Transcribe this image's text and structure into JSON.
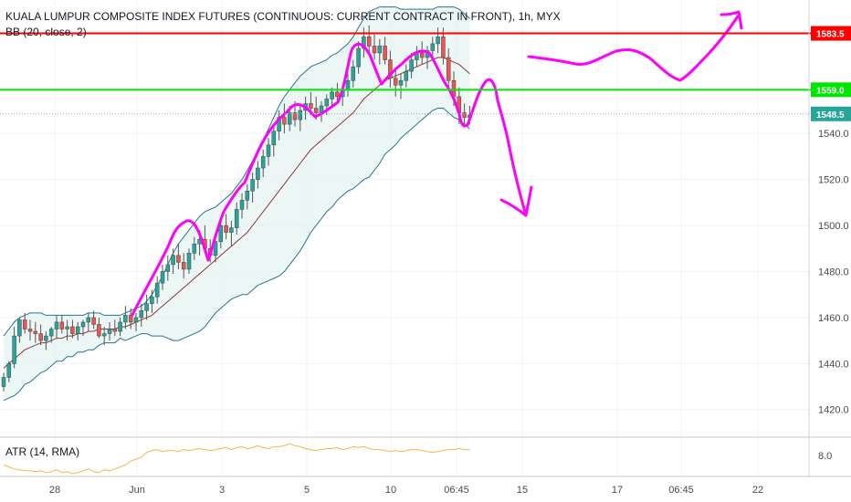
{
  "chart_data": {
    "type": "candlestick",
    "title": "KUALA LUMPUR COMPOSITE INDEX FUTURES (CONTINUOUS: CURRENT CONTRACT IN FRONT), 1h, MYX",
    "indicator_label": "BB (20, close, 2)",
    "lower_indicator_label": "ATR (14, RMA)",
    "ylim": [
      1408,
      1598
    ],
    "y_ticks": [
      1420.0,
      1440.0,
      1460.0,
      1480.0,
      1500.0,
      1520.0,
      1540.0
    ],
    "x_tick_labels": [
      "28",
      "Jun",
      "3",
      "5",
      "10",
      "06:45",
      "15",
      "17",
      "06:45",
      "22"
    ],
    "lower_y_tick": "8.0",
    "levels": [
      {
        "value": 1583.5,
        "label": "1583.5",
        "color": "#ff0000"
      },
      {
        "value": 1559.0,
        "label": "1559.0",
        "color": "#00e600"
      },
      {
        "value": 1548.5,
        "label": "1548.5",
        "color": "#26a69a"
      }
    ],
    "ohlc": [
      [
        1430,
        1436,
        1428,
        1434
      ],
      [
        1434,
        1441,
        1432,
        1440
      ],
      [
        1440,
        1456,
        1438,
        1452
      ],
      [
        1452,
        1460,
        1449,
        1459
      ],
      [
        1459,
        1462,
        1453,
        1455
      ],
      [
        1455,
        1459,
        1450,
        1454
      ],
      [
        1454,
        1458,
        1449,
        1453
      ],
      [
        1453,
        1457,
        1448,
        1450
      ],
      [
        1450,
        1454,
        1446,
        1452
      ],
      [
        1452,
        1456,
        1449,
        1455
      ],
      [
        1455,
        1461,
        1451,
        1458
      ],
      [
        1458,
        1461,
        1453,
        1455
      ],
      [
        1455,
        1459,
        1450,
        1456
      ],
      [
        1456,
        1459,
        1451,
        1453
      ],
      [
        1453,
        1458,
        1450,
        1456
      ],
      [
        1456,
        1459,
        1452,
        1458
      ],
      [
        1458,
        1462,
        1454,
        1460
      ],
      [
        1460,
        1463,
        1455,
        1457
      ],
      [
        1457,
        1460,
        1451,
        1452
      ],
      [
        1452,
        1456,
        1448,
        1453
      ],
      [
        1453,
        1458,
        1450,
        1455
      ],
      [
        1455,
        1459,
        1452,
        1454
      ],
      [
        1454,
        1460,
        1452,
        1458
      ],
      [
        1458,
        1465,
        1455,
        1461
      ],
      [
        1461,
        1464,
        1455,
        1458
      ],
      [
        1458,
        1462,
        1454,
        1460
      ],
      [
        1460,
        1466,
        1456,
        1463
      ],
      [
        1463,
        1470,
        1459,
        1466
      ],
      [
        1466,
        1472,
        1462,
        1469
      ],
      [
        1469,
        1478,
        1466,
        1475
      ],
      [
        1475,
        1483,
        1472,
        1480
      ],
      [
        1480,
        1487,
        1476,
        1483
      ],
      [
        1483,
        1490,
        1479,
        1487
      ],
      [
        1487,
        1492,
        1481,
        1484
      ],
      [
        1484,
        1488,
        1477,
        1481
      ],
      [
        1481,
        1490,
        1479,
        1488
      ],
      [
        1488,
        1495,
        1485,
        1492
      ],
      [
        1492,
        1498,
        1487,
        1494
      ],
      [
        1494,
        1500,
        1488,
        1490
      ],
      [
        1490,
        1494,
        1484,
        1487
      ],
      [
        1487,
        1496,
        1484,
        1493
      ],
      [
        1493,
        1502,
        1490,
        1500
      ],
      [
        1500,
        1505,
        1494,
        1497
      ],
      [
        1497,
        1502,
        1491,
        1499
      ],
      [
        1499,
        1510,
        1496,
        1507
      ],
      [
        1507,
        1514,
        1503,
        1511
      ],
      [
        1511,
        1518,
        1507,
        1515
      ],
      [
        1515,
        1523,
        1510,
        1520
      ],
      [
        1520,
        1528,
        1516,
        1525
      ],
      [
        1525,
        1533,
        1521,
        1530
      ],
      [
        1530,
        1538,
        1526,
        1535
      ],
      [
        1535,
        1544,
        1530,
        1541
      ],
      [
        1541,
        1550,
        1537,
        1547
      ],
      [
        1547,
        1553,
        1540,
        1544
      ],
      [
        1544,
        1552,
        1541,
        1549
      ],
      [
        1549,
        1554,
        1543,
        1546
      ],
      [
        1546,
        1552,
        1541,
        1550
      ],
      [
        1550,
        1556,
        1546,
        1553
      ],
      [
        1553,
        1558,
        1548,
        1551
      ],
      [
        1551,
        1556,
        1546,
        1549
      ],
      [
        1549,
        1554,
        1545,
        1552
      ],
      [
        1552,
        1557,
        1548,
        1555
      ],
      [
        1555,
        1560,
        1551,
        1558
      ],
      [
        1558,
        1562,
        1553,
        1556
      ],
      [
        1556,
        1561,
        1552,
        1559
      ],
      [
        1559,
        1566,
        1556,
        1563
      ],
      [
        1563,
        1572,
        1560,
        1569
      ],
      [
        1569,
        1580,
        1566,
        1577
      ],
      [
        1577,
        1586,
        1573,
        1582
      ],
      [
        1582,
        1587,
        1575,
        1578
      ],
      [
        1578,
        1583,
        1572,
        1575
      ],
      [
        1575,
        1581,
        1570,
        1578
      ],
      [
        1578,
        1582,
        1570,
        1572
      ],
      [
        1572,
        1576,
        1560,
        1564
      ],
      [
        1564,
        1568,
        1556,
        1561
      ],
      [
        1561,
        1566,
        1555,
        1563
      ],
      [
        1563,
        1570,
        1560,
        1567
      ],
      [
        1567,
        1575,
        1564,
        1572
      ],
      [
        1572,
        1578,
        1569,
        1575
      ],
      [
        1575,
        1580,
        1570,
        1573
      ],
      [
        1573,
        1578,
        1568,
        1576
      ],
      [
        1576,
        1582,
        1572,
        1579
      ],
      [
        1579,
        1586,
        1575,
        1582
      ],
      [
        1582,
        1586,
        1570,
        1573
      ],
      [
        1573,
        1577,
        1560,
        1563
      ],
      [
        1563,
        1567,
        1552,
        1556
      ],
      [
        1556,
        1560,
        1544,
        1549
      ],
      [
        1549,
        1553,
        1544,
        1547
      ],
      [
        1547,
        1552,
        1544,
        1548
      ]
    ],
    "bb_upper": [
      1452,
      1455,
      1458,
      1460,
      1461,
      1462,
      1462,
      1462,
      1461,
      1461,
      1461,
      1461,
      1461,
      1461,
      1461,
      1461,
      1462,
      1462,
      1462,
      1461,
      1461,
      1461,
      1461,
      1462,
      1463,
      1464,
      1465,
      1467,
      1470,
      1474,
      1478,
      1483,
      1488,
      1492,
      1495,
      1498,
      1501,
      1504,
      1506,
      1507,
      1508,
      1510,
      1512,
      1514,
      1517,
      1520,
      1524,
      1528,
      1532,
      1537,
      1542,
      1547,
      1552,
      1556,
      1559,
      1562,
      1565,
      1567,
      1569,
      1570,
      1571,
      1572,
      1574,
      1575,
      1577,
      1579,
      1582,
      1586,
      1590,
      1593,
      1594,
      1595,
      1595,
      1595,
      1595,
      1594,
      1594,
      1594,
      1594,
      1594,
      1594,
      1594,
      1595,
      1595,
      1595,
      1595,
      1594,
      1592,
      1590
    ],
    "bb_middle": [
      1438,
      1440,
      1442,
      1444,
      1446,
      1447,
      1448,
      1449,
      1449,
      1450,
      1451,
      1451,
      1452,
      1452,
      1453,
      1453,
      1454,
      1454,
      1455,
      1455,
      1455,
      1455,
      1456,
      1456,
      1457,
      1458,
      1459,
      1460,
      1461,
      1463,
      1465,
      1467,
      1469,
      1471,
      1473,
      1475,
      1477,
      1479,
      1481,
      1483,
      1485,
      1487,
      1489,
      1491,
      1493,
      1495,
      1497,
      1500,
      1503,
      1506,
      1509,
      1512,
      1515,
      1518,
      1521,
      1524,
      1527,
      1530,
      1533,
      1535,
      1537,
      1539,
      1541,
      1543,
      1545,
      1547,
      1549,
      1552,
      1555,
      1557,
      1559,
      1561,
      1563,
      1564,
      1565,
      1566,
      1567,
      1568,
      1569,
      1570,
      1571,
      1572,
      1573,
      1573,
      1572,
      1571,
      1570,
      1568,
      1566
    ],
    "bb_lower": [
      1424,
      1425,
      1426,
      1428,
      1431,
      1432,
      1434,
      1436,
      1437,
      1439,
      1441,
      1441,
      1443,
      1443,
      1445,
      1445,
      1446,
      1446,
      1448,
      1449,
      1449,
      1449,
      1451,
      1450,
      1451,
      1452,
      1453,
      1453,
      1452,
      1452,
      1452,
      1451,
      1450,
      1450,
      1451,
      1452,
      1453,
      1454,
      1456,
      1459,
      1462,
      1464,
      1466,
      1468,
      1469,
      1470,
      1470,
      1472,
      1474,
      1475,
      1476,
      1477,
      1478,
      1480,
      1483,
      1486,
      1489,
      1493,
      1497,
      1500,
      1503,
      1506,
      1508,
      1511,
      1513,
      1515,
      1516,
      1518,
      1520,
      1521,
      1524,
      1527,
      1531,
      1533,
      1535,
      1538,
      1540,
      1542,
      1544,
      1546,
      1548,
      1550,
      1551,
      1551,
      1549,
      1547,
      1546,
      1544,
      1542
    ],
    "atr": [
      7.0,
      6.8,
      6.6,
      6.5,
      6.4,
      6.4,
      6.3,
      6.4,
      6.2,
      6.3,
      6.5,
      6.2,
      6.3,
      6.1,
      6.2,
      6.4,
      6.6,
      6.3,
      6.2,
      6.5,
      6.4,
      6.6,
      6.8,
      7.0,
      7.4,
      7.6,
      7.8,
      8.3,
      8.5,
      8.6,
      8.4,
      8.5,
      8.5,
      8.4,
      8.6,
      8.5,
      8.6,
      8.7,
      8.6,
      8.5,
      8.6,
      8.7,
      8.8,
      8.6,
      8.8,
      8.9,
      8.7,
      8.8,
      9.0,
      8.8,
      8.7,
      8.9,
      8.9,
      9.0,
      9.2,
      9.0,
      8.9,
      8.7,
      8.6,
      8.5,
      8.6,
      8.7,
      8.7,
      8.8,
      8.6,
      8.7,
      8.9,
      8.8,
      8.9,
      8.7,
      8.6,
      8.6,
      8.5,
      8.4,
      8.5,
      8.4,
      8.5,
      8.6,
      8.6,
      8.5,
      8.4,
      8.3,
      8.4,
      8.5,
      8.6,
      8.6,
      8.7,
      8.6,
      8.6
    ],
    "atr_ylim": [
      6.0,
      9.6
    ]
  }
}
